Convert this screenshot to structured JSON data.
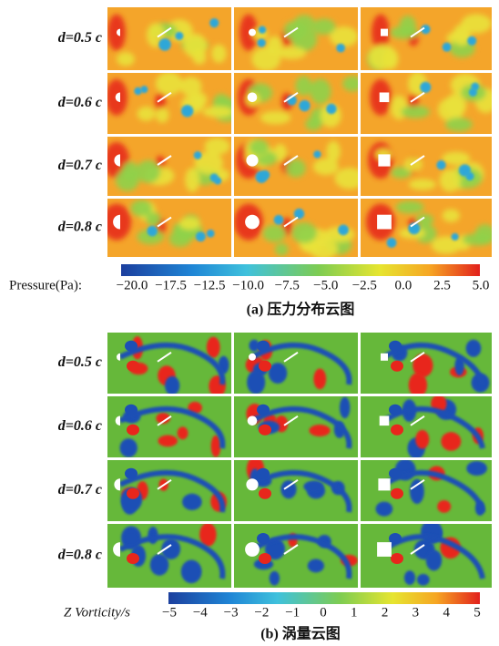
{
  "panel_a": {
    "row_labels": [
      "d=0.5 c",
      "d=0.6 c",
      "d=0.7 c",
      "d=0.8 c"
    ],
    "colorbar": {
      "title": "Pressure(Pa):",
      "ticks": [
        "−20.0",
        "−17.5",
        "−12.5",
        "−10.0",
        "−7.5",
        "−5.0",
        "−2.5",
        "0.0",
        "2.5",
        "5.0"
      ]
    },
    "caption": "(a) 压力分布云图"
  },
  "panel_b": {
    "row_labels": [
      "d=0.5 c",
      "d=0.6 c",
      "d=0.7 c",
      "d=0.8 c"
    ],
    "colorbar": {
      "title": "Z Vorticity/s",
      "ticks": [
        "−5",
        "−4",
        "−3",
        "−2",
        "−1",
        "0",
        "1",
        "2",
        "3",
        "4",
        "5"
      ]
    },
    "caption": "(b) 涡量云图"
  }
}
